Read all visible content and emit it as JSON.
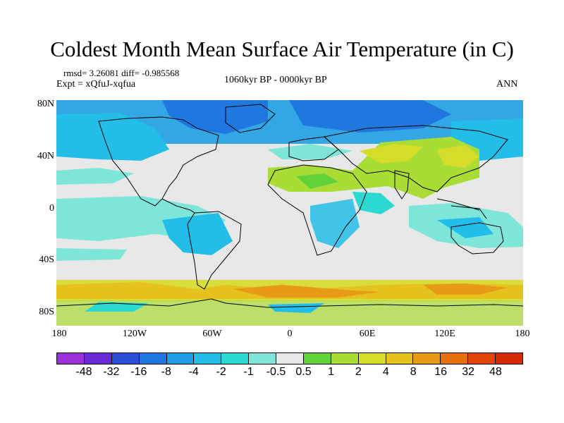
{
  "title": "Coldest Month Mean Surface Air Temperature (in C)",
  "stats": {
    "rmsd_diff": "rmsd= 3.26081 diff= -0.985568",
    "expt": "Expt = xQfuJ-xqfua",
    "period": "1060kyr BP - 0000kyr BP",
    "season": "ANN"
  },
  "axes": {
    "x_ticks": [
      "180",
      "120W",
      "60W",
      "0",
      "60E",
      "120E",
      "180"
    ],
    "y_ticks": [
      "80N",
      "40N",
      "0",
      "40S",
      "80S"
    ]
  },
  "colorbar": {
    "labels": [
      "-48",
      "-32",
      "-16",
      "-8",
      "-4",
      "-2",
      "-1",
      "-0.5",
      "0.5",
      "1",
      "2",
      "4",
      "8",
      "16",
      "32",
      "48"
    ],
    "colors": [
      "#9b30d8",
      "#6a2ad6",
      "#2c4fd8",
      "#1e78e0",
      "#1f9ee6",
      "#22bde8",
      "#2cd9d2",
      "#7ee6d8",
      "#e8e8e8",
      "#62d23a",
      "#a9dc34",
      "#d6dc2a",
      "#e6c21e",
      "#e69a16",
      "#e6700c",
      "#e04406",
      "#d42a04"
    ]
  },
  "map": {
    "projection": "cylindrical equidistant",
    "field": "difference in coldest month mean surface air temperature (C)",
    "lon_range": [
      -180,
      180
    ],
    "lat_range": [
      -90,
      90
    ],
    "background_color": "#e8e8e8",
    "coastline_color": "#000000"
  }
}
